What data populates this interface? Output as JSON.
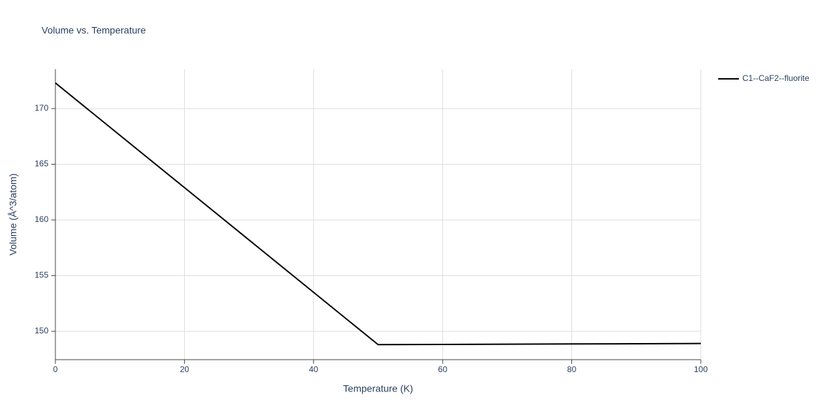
{
  "chart_data": {
    "type": "line",
    "title": "Volume vs. Temperature",
    "x_label": "Temperature (K)",
    "y_label": "Volume (Å^3/atom)",
    "x": [
      0,
      10,
      20,
      30,
      40,
      50,
      60,
      70,
      80,
      90,
      100
    ],
    "series": [
      {
        "name": "C1--CaF2--fluorite",
        "color": "#000000",
        "values": [
          172.3,
          167.6,
          162.9,
          158.2,
          153.5,
          148.8,
          148.82,
          148.84,
          148.86,
          148.88,
          148.9
        ]
      }
    ],
    "xlim": [
      0,
      100
    ],
    "xticks": [
      0,
      20,
      40,
      60,
      80,
      100
    ],
    "ylim": [
      147.45,
      173.54
    ],
    "yticks": [
      150,
      155,
      160,
      165,
      170
    ],
    "grid": true,
    "legend": "right"
  }
}
